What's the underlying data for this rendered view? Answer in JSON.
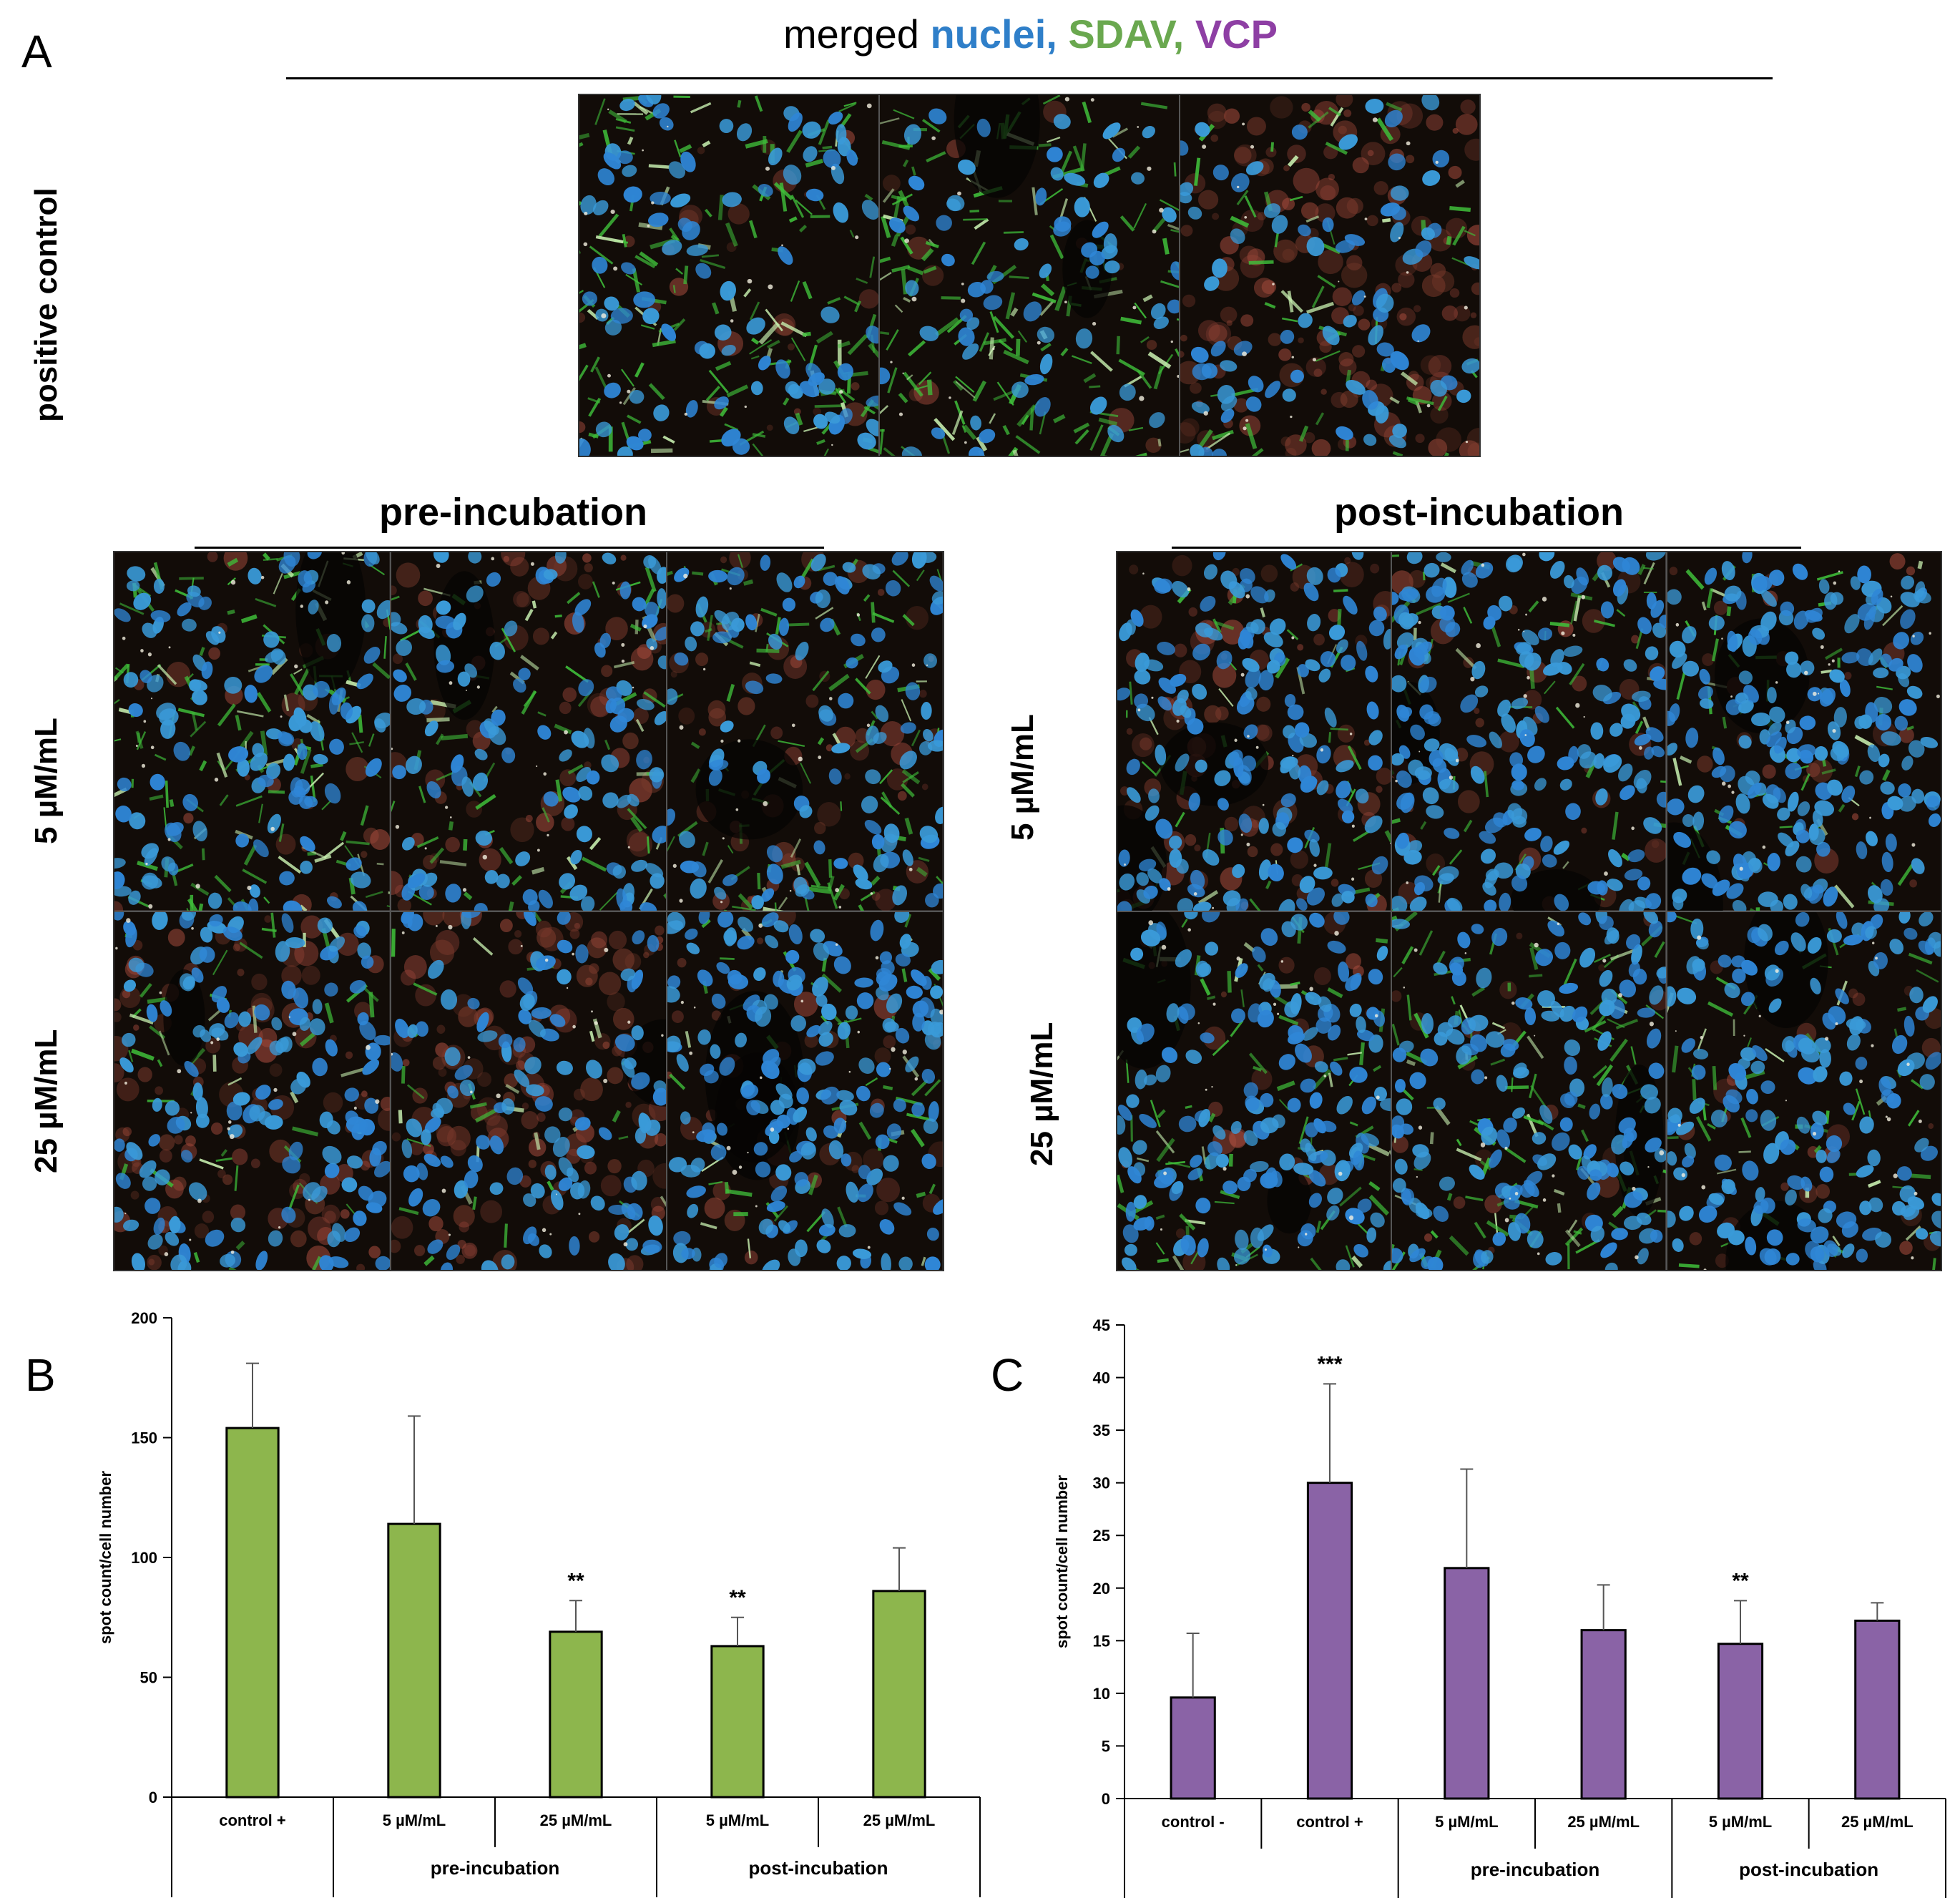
{
  "panels": {
    "a": "A",
    "b": "B",
    "c": "C"
  },
  "panel_a": {
    "title_parts": {
      "merged": "merged",
      "nuclei": "nuclei,",
      "sdav": "SDAV,",
      "vcp": "VCP"
    },
    "row_label_positive": "positive control",
    "group_pre": "pre-incubation",
    "group_post": "post-incubation",
    "row_5": "5 µM/mL",
    "row_25": "25 µM/mL",
    "colors": {
      "nuclei": "#2f7fc9",
      "sdav": "#6aa84f",
      "vcp": "#8e3fa4"
    }
  },
  "chart_data": [
    {
      "id": "B",
      "type": "bar",
      "categories": [
        "control +",
        "5 µM/mL",
        "25 µM/mL",
        "5 µM/mL",
        "25 µM/mL"
      ],
      "groups": [
        {
          "label": "",
          "start": 0,
          "end": 0
        },
        {
          "label": "pre-incubation",
          "start": 1,
          "end": 2
        },
        {
          "label": "post-incubation",
          "start": 3,
          "end": 4
        }
      ],
      "values": [
        154,
        114,
        69,
        63,
        86
      ],
      "errors": [
        27,
        45,
        13,
        12,
        18
      ],
      "annotations": [
        "",
        "",
        "**",
        "**",
        ""
      ],
      "ylabel": "spot count/cell number",
      "ylim": [
        0,
        200
      ],
      "yticks": [
        0,
        50,
        100,
        150,
        200
      ],
      "bar_color": "#8db64d"
    },
    {
      "id": "C",
      "type": "bar",
      "categories": [
        "control -",
        "control +",
        "5 µM/mL",
        "25 µM/mL",
        "5 µM/mL",
        "25 µM/mL"
      ],
      "groups": [
        {
          "label": "",
          "start": 0,
          "end": 1
        },
        {
          "label": "pre-incubation",
          "start": 2,
          "end": 3
        },
        {
          "label": "post-incubation",
          "start": 4,
          "end": 5
        }
      ],
      "values": [
        9.6,
        30,
        21.9,
        16,
        14.7,
        16.9
      ],
      "errors": [
        6.1,
        9.4,
        9.4,
        4.3,
        4.1,
        1.7
      ],
      "annotations": [
        "",
        "***",
        "",
        "",
        "**",
        ""
      ],
      "ylabel": "spot count/cell number",
      "ylim": [
        0,
        45
      ],
      "yticks": [
        0,
        5,
        10,
        15,
        20,
        25,
        30,
        35,
        40,
        45
      ],
      "bar_color": "#8a63a6"
    }
  ]
}
